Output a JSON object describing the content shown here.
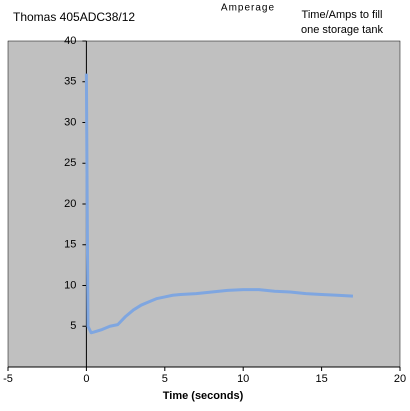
{
  "chart_data": {
    "type": "line",
    "title": "Thomas 405ADC38/12",
    "subtitle": "Amperage",
    "annotation": [
      "Time/Amps to fill",
      "one storage tank"
    ],
    "x_label": "Time (seconds)",
    "x": [
      0,
      0.05,
      0.1,
      0.3,
      0.5,
      1,
      1.5,
      2,
      2.5,
      3,
      3.5,
      4,
      4.5,
      5,
      5.5,
      6,
      7,
      8,
      9,
      10,
      11,
      12,
      13,
      14,
      15,
      16,
      17
    ],
    "values": [
      36,
      20,
      5,
      4.2,
      4.3,
      4.6,
      5.0,
      5.2,
      6.2,
      7.0,
      7.6,
      8.0,
      8.4,
      8.6,
      8.8,
      8.9,
      9.0,
      9.2,
      9.4,
      9.5,
      9.5,
      9.3,
      9.2,
      9.0,
      8.9,
      8.8,
      8.7
    ],
    "color": "#7fa6e0",
    "xlim": [
      -5,
      20
    ],
    "xticks": [
      -5,
      0,
      5,
      10,
      15,
      20
    ],
    "ylim": [
      0,
      40
    ],
    "yticks": [
      5,
      10,
      15,
      20,
      25,
      30,
      35,
      40
    ],
    "grid": false
  }
}
